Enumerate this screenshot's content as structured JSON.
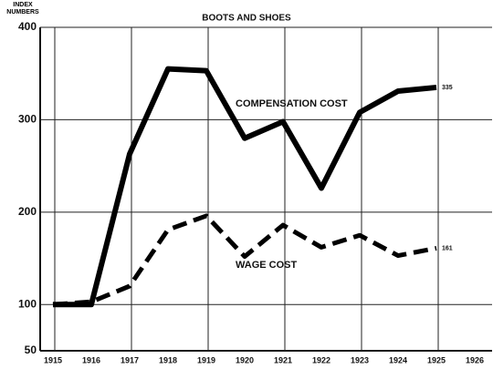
{
  "chart_data": {
    "type": "line",
    "title": "BOOTS AND SHOES",
    "y_label": "INDEX NUMBERS",
    "categories": [
      "1915",
      "1916",
      "1917",
      "1918",
      "1919",
      "1920",
      "1921",
      "1922",
      "1923",
      "1924",
      "1925",
      "1926"
    ],
    "series": [
      {
        "name": "COMPENSATION COST",
        "color": "#000000",
        "style": "solid",
        "values": [
          100,
          100,
          263,
          355,
          353,
          280,
          298,
          226,
          308,
          331,
          335,
          null
        ]
      },
      {
        "name": "WAGE COST",
        "color": "#000000",
        "style": "dashed",
        "values": [
          100,
          103,
          120,
          181,
          196,
          152,
          186,
          162,
          175,
          153,
          161,
          null
        ]
      }
    ],
    "ylim": [
      50,
      400
    ],
    "yticks": [
      50,
      100,
      200,
      300,
      400
    ],
    "grid": true
  }
}
